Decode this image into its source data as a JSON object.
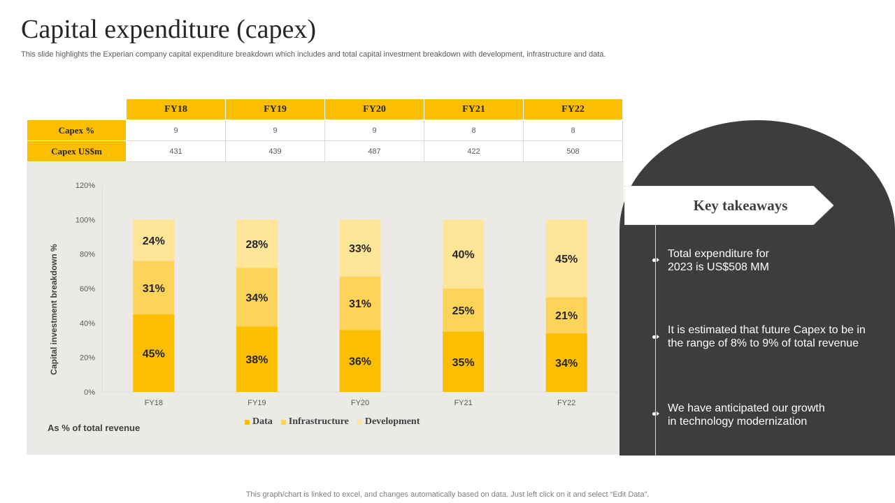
{
  "page": {
    "title": "Capital expenditure (capex)",
    "subtitle": "This slide highlights the Experian company capital expenditure breakdown which includes and total capital investment breakdown with development, infrastructure and data.",
    "footer": "This graph/chart is linked to excel,  and changes automatically based on data. Just left click on it and select “Edit Data”."
  },
  "table": {
    "years": [
      "FY18",
      "FY19",
      "FY20",
      "FY21",
      "FY22"
    ],
    "rows": [
      {
        "label": "Capex %",
        "values": [
          "9",
          "9",
          "9",
          "8",
          "8"
        ]
      },
      {
        "label": "Capex US$m",
        "values": [
          "431",
          "439",
          "487",
          "422",
          "508"
        ]
      }
    ]
  },
  "chart_data": {
    "type": "bar",
    "stacked": true,
    "categories": [
      "FY18",
      "FY19",
      "FY20",
      "FY21",
      "FY22"
    ],
    "series": [
      {
        "name": "Data",
        "values": [
          45,
          38,
          36,
          35,
          34
        ],
        "color": "#fbbe00"
      },
      {
        "name": "Infrastructure",
        "values": [
          31,
          34,
          31,
          25,
          21
        ],
        "color": "#fdd35a"
      },
      {
        "name": "Development",
        "values": [
          24,
          28,
          33,
          40,
          45
        ],
        "color": "#fee598"
      }
    ],
    "ylabel": "Capital investment breakdown %",
    "yticks": [
      "0%",
      "20%",
      "40%",
      "60%",
      "80%",
      "100%",
      "120%"
    ],
    "ylim": [
      0,
      120
    ],
    "value_suffix": "%",
    "note": "As  % of total revenue",
    "legend_position": "bottom"
  },
  "takeaways": {
    "title": "Key takeaways",
    "items": [
      {
        "line1": "Total expenditure for",
        "line2": "2023 is US$508 MM"
      },
      {
        "line1": "It is estimated that future  Capex to be in",
        "line2": "the range of 8% to 9% of total revenue"
      },
      {
        "line1": "We have anticipated our growth",
        "line2": "in technology modernization"
      }
    ]
  },
  "colors": {
    "accent": "#fbbe00",
    "panel_dark": "#3d3d3d",
    "panel_light": "#ebeae6"
  }
}
